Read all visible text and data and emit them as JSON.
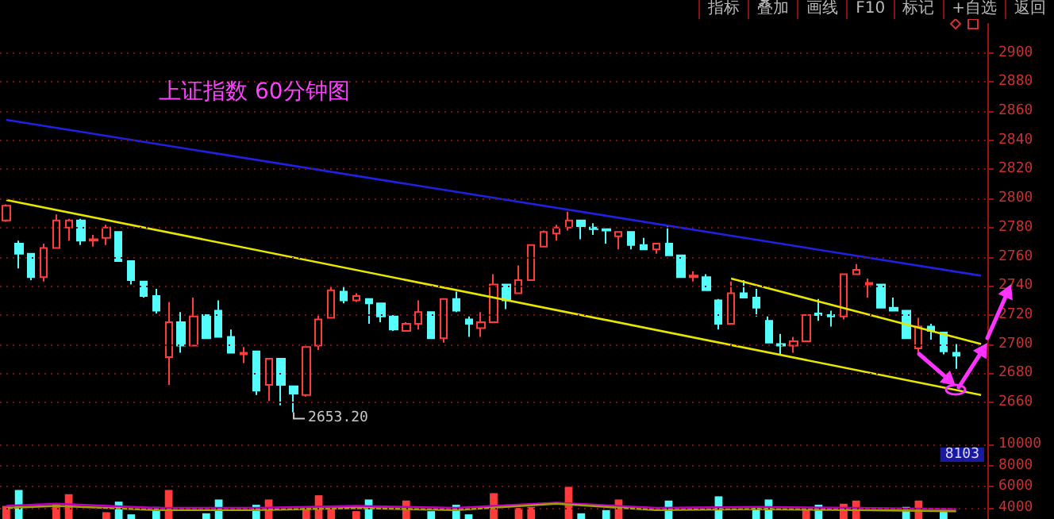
{
  "chart_data": [
    {
      "type": "candlestick",
      "title": "上证指数 60分钟图",
      "categories": [
        null,
        null,
        null,
        null,
        null,
        null,
        null,
        null,
        null,
        null,
        null,
        null,
        null,
        null,
        null,
        null,
        null,
        null,
        null,
        null,
        null,
        null,
        null,
        null,
        null,
        null,
        null,
        null,
        null,
        null,
        null,
        null,
        null,
        null,
        null,
        null,
        null,
        null,
        null,
        null,
        null,
        null,
        null,
        null,
        null,
        null,
        null,
        null,
        null,
        null,
        null,
        null,
        null,
        null,
        null,
        null,
        null,
        null,
        null,
        null,
        null,
        null,
        null,
        null,
        null,
        null,
        null,
        null,
        null,
        null,
        null,
        null,
        null,
        null,
        null,
        null,
        null,
        null,
        null
      ],
      "series": [
        {
          "ohlc": [
            [
              2785,
              2796,
              2784,
              2795
            ],
            [
              2769,
              2771,
              2752,
              2762
            ],
            [
              2762,
              2762,
              2744,
              2746
            ],
            [
              2746,
              2769,
              2743,
              2766
            ],
            [
              2766,
              2789,
              2766,
              2785
            ],
            [
              2780,
              2786,
              2771,
              2785
            ],
            [
              2785,
              2786,
              2768,
              2771
            ],
            [
              2771,
              2775,
              2767,
              2772
            ],
            [
              2773,
              2782,
              2768,
              2780
            ],
            [
              2777,
              2777,
              2757,
              2757
            ],
            [
              2757,
              2757,
              2741,
              2744
            ],
            [
              2743,
              2743,
              2732,
              2733
            ],
            [
              2733,
              2738,
              2721,
              2723
            ],
            [
              2691,
              2729,
              2672,
              2715
            ],
            [
              2715,
              2722,
              2694,
              2699
            ],
            [
              2699,
              2732,
              2699,
              2719
            ],
            [
              2720,
              2720,
              2704,
              2704
            ],
            [
              2723,
              2730,
              2705,
              2705
            ],
            [
              2705,
              2710,
              2694,
              2694
            ],
            [
              2693,
              2698,
              2687,
              2694
            ],
            [
              2695,
              2695,
              2665,
              2668
            ],
            [
              2672,
              2690,
              2661,
              2690
            ],
            [
              2690,
              2690,
              2658,
              2672
            ],
            [
              2671,
              2671,
              2653.2,
              2666
            ],
            [
              2665,
              2698,
              2664,
              2698
            ],
            [
              2699,
              2720,
              2696,
              2717
            ],
            [
              2718,
              2739,
              2718,
              2737
            ],
            [
              2736,
              2739,
              2728,
              2730
            ],
            [
              2730,
              2735,
              2729,
              2733
            ],
            [
              2731,
              2731,
              2714,
              2728
            ],
            [
              2728,
              2728,
              2715,
              2719
            ],
            [
              2719,
              2720,
              2709,
              2710
            ],
            [
              2709,
              2715,
              2709,
              2714
            ],
            [
              2714,
              2730,
              2710,
              2722
            ],
            [
              2722,
              2722,
              2704,
              2704
            ],
            [
              2704,
              2731,
              2701,
              2731
            ],
            [
              2731,
              2736,
              2722,
              2723
            ],
            [
              2717,
              2719,
              2705,
              2714
            ],
            [
              2711,
              2722,
              2705,
              2715
            ],
            [
              2715,
              2748,
              2715,
              2741
            ],
            [
              2741,
              2741,
              2724,
              2730
            ],
            [
              2735,
              2754,
              2735,
              2744
            ],
            [
              2744,
              2768,
              2744,
              2768
            ],
            [
              2767,
              2778,
              2767,
              2777
            ],
            [
              2776,
              2782,
              2771,
              2780
            ],
            [
              2780,
              2791,
              2778,
              2785
            ],
            [
              2785,
              2785,
              2772,
              2781
            ],
            [
              2780,
              2783,
              2775,
              2779
            ],
            [
              2779,
              2779,
              2769,
              2778
            ],
            [
              2774,
              2777,
              2765,
              2777
            ],
            [
              2777,
              2777,
              2765,
              2768
            ],
            [
              2768,
              2773,
              2765,
              2765
            ],
            [
              2765,
              2769,
              2762,
              2769
            ],
            [
              2769,
              2781,
              2761,
              2761
            ],
            [
              2761,
              2761,
              2746,
              2746
            ],
            [
              2746,
              2750,
              2743,
              2747
            ],
            [
              2746,
              2748,
              2737,
              2737
            ],
            [
              2730,
              2731,
              2710,
              2714
            ],
            [
              2714,
              2743,
              2714,
              2735
            ],
            [
              2735,
              2744,
              2732,
              2732
            ],
            [
              2732,
              2738,
              2719,
              2725
            ],
            [
              2716,
              2719,
              2701,
              2701
            ],
            [
              2700,
              2707,
              2693,
              2699
            ],
            [
              2699,
              2705,
              2694,
              2702
            ],
            [
              2702,
              2720,
              2702,
              2720
            ],
            [
              2721,
              2731,
              2716,
              2720
            ],
            [
              2720,
              2723,
              2712,
              2719
            ],
            [
              2719,
              2748,
              2717,
              2748
            ],
            [
              2748,
              2755,
              2748,
              2751
            ],
            [
              2741,
              2745,
              2732,
              2742
            ],
            [
              2741,
              2741,
              2725,
              2725
            ],
            [
              2725,
              2732,
              2723,
              2723
            ],
            [
              2723,
              2723,
              2704,
              2704
            ],
            [
              2697,
              2718,
              2694,
              2712
            ],
            [
              2712,
              2714,
              2703,
              2709
            ],
            [
              2708,
              2708,
              2693,
              2695
            ],
            [
              2694,
              2700,
              2683,
              2692
            ],
            null,
            null
          ],
          "colors": [
            "#ff3c3c",
            "#54fcfc",
            "#54fcfc",
            "#ff3c3c",
            "#ff3c3c",
            "#ff3c3c",
            "#54fcfc",
            "#ff3c3c",
            "#ff3c3c",
            "#54fcfc",
            "#54fcfc",
            "#54fcfc",
            "#54fcfc",
            "#ff3c3c",
            "#54fcfc",
            "#ff3c3c",
            "#54fcfc",
            "#54fcfc",
            "#54fcfc",
            "#ff3c3c",
            "#54fcfc",
            "#ff3c3c",
            "#54fcfc",
            "#54fcfc",
            "#ff3c3c",
            "#ff3c3c",
            "#ff3c3c",
            "#54fcfc",
            "#ff3c3c",
            "#54fcfc",
            "#54fcfc",
            "#54fcfc",
            "#ff3c3c",
            "#ff3c3c",
            "#54fcfc",
            "#ff3c3c",
            "#54fcfc",
            "#54fcfc",
            "#ff3c3c",
            "#ff3c3c",
            "#54fcfc",
            "#ff3c3c",
            "#ff3c3c",
            "#ff3c3c",
            "#ff3c3c",
            "#ff3c3c",
            "#54fcfc",
            "#54fcfc",
            "#54fcfc",
            "#ff3c3c",
            "#54fcfc",
            "#54fcfc",
            "#ff3c3c",
            "#54fcfc",
            "#54fcfc",
            "#ff3c3c",
            "#54fcfc",
            "#54fcfc",
            "#ff3c3c",
            "#54fcfc",
            "#54fcfc",
            "#54fcfc",
            "#54fcfc",
            "#ff3c3c",
            "#ff3c3c",
            "#54fcfc",
            "#54fcfc",
            "#ff3c3c",
            "#ff3c3c",
            "#ff3c3c",
            "#54fcfc",
            "#54fcfc",
            "#54fcfc",
            "#ff3c3c",
            "#54fcfc",
            "#54fcfc",
            "#54fcfc",
            null,
            null
          ],
          "value_labels": [
            null,
            null,
            null,
            null,
            null,
            null,
            null,
            null,
            null,
            null,
            null,
            null,
            null,
            null,
            null,
            null,
            null,
            null,
            null,
            null,
            null,
            null,
            null,
            "2653.20",
            null,
            null,
            null,
            null,
            null,
            null,
            null,
            null,
            null,
            null,
            null,
            null,
            null,
            null,
            null,
            null,
            null,
            null,
            null,
            null,
            null,
            null,
            null,
            null,
            null,
            null,
            null,
            null,
            null,
            null,
            null,
            null,
            null,
            null,
            null,
            null,
            null,
            null,
            null,
            null,
            null,
            null,
            null,
            null,
            null,
            null,
            null,
            null,
            null,
            null,
            null,
            null,
            null,
            null,
            null
          ]
        },
        {
          "type": "line",
          "color": "#2020e0",
          "values": [
            2854,
            null,
            null,
            null,
            null,
            null,
            null,
            null,
            null,
            null,
            null,
            null,
            null,
            null,
            null,
            null,
            null,
            null,
            null,
            null,
            null,
            null,
            null,
            null,
            null,
            null,
            null,
            null,
            null,
            null,
            null,
            null,
            null,
            null,
            null,
            null,
            null,
            null,
            null,
            null,
            null,
            null,
            null,
            null,
            null,
            null,
            null,
            null,
            null,
            null,
            null,
            null,
            null,
            null,
            null,
            null,
            null,
            null,
            null,
            null,
            null,
            null,
            null,
            null,
            null,
            null,
            null,
            null,
            null,
            null,
            null,
            null,
            null,
            null,
            null,
            null,
            null,
            null,
            2747
          ]
        },
        {
          "type": "line",
          "color": "#e6e600",
          "values": [
            2799,
            null,
            null,
            null,
            null,
            null,
            null,
            null,
            null,
            null,
            null,
            null,
            null,
            null,
            null,
            null,
            null,
            null,
            null,
            null,
            null,
            null,
            null,
            null,
            null,
            null,
            null,
            null,
            null,
            null,
            null,
            null,
            null,
            null,
            null,
            null,
            null,
            null,
            null,
            null,
            null,
            null,
            null,
            null,
            null,
            null,
            null,
            null,
            null,
            null,
            null,
            null,
            null,
            null,
            null,
            null,
            null,
            null,
            null,
            null,
            null,
            null,
            null,
            null,
            null,
            null,
            null,
            null,
            null,
            null,
            null,
            null,
            null,
            null,
            null,
            null,
            null,
            null,
            2665
          ]
        },
        {
          "type": "line",
          "color": "#e6e600",
          "values": [
            null,
            null,
            null,
            null,
            null,
            null,
            null,
            null,
            null,
            null,
            null,
            null,
            null,
            null,
            null,
            null,
            null,
            null,
            null,
            null,
            null,
            null,
            null,
            null,
            null,
            null,
            null,
            null,
            null,
            null,
            null,
            null,
            null,
            null,
            null,
            null,
            null,
            null,
            null,
            null,
            null,
            null,
            null,
            null,
            null,
            null,
            null,
            null,
            null,
            null,
            null,
            null,
            null,
            null,
            null,
            null,
            null,
            null,
            2745,
            null,
            null,
            null,
            null,
            null,
            null,
            null,
            null,
            null,
            null,
            null,
            null,
            null,
            null,
            null,
            null,
            null,
            null,
            null,
            2700
          ]
        }
      ],
      "ylim": [
        2642,
        2920
      ],
      "yticks": [
        2660,
        2680,
        2700,
        2720,
        2740,
        2760,
        2780,
        2800,
        2820,
        2840,
        2860,
        2880,
        2900
      ],
      "grid": "y",
      "tick_labels": "y",
      "annotations": [
        "指标",
        "叠加",
        "画线",
        "F10",
        "标记",
        "+自选",
        "返回"
      ]
    },
    {
      "type": "bar",
      "categories": [
        null,
        null,
        null,
        null,
        null,
        null,
        null,
        null,
        null,
        null,
        null,
        null,
        null,
        null,
        null,
        null,
        null,
        null,
        null,
        null,
        null,
        null,
        null,
        null,
        null,
        null,
        null,
        null,
        null,
        null,
        null,
        null,
        null,
        null,
        null,
        null,
        null,
        null,
        null,
        null,
        null,
        null,
        null,
        null,
        null,
        null,
        null,
        null,
        null,
        null,
        null,
        null,
        null,
        null,
        null,
        null,
        null,
        null,
        null,
        null,
        null,
        null,
        null,
        null,
        null,
        null,
        null,
        null,
        null,
        null,
        null,
        null,
        null,
        null,
        null,
        null,
        null,
        null,
        null
      ],
      "series": [
        {
          "values": [
            4200,
            5700,
            null,
            null,
            4400,
            5300,
            null,
            null,
            3600,
            4600,
            3400,
            null,
            4100,
            5700,
            null,
            null,
            3500,
            4800,
            null,
            null,
            4300,
            4800,
            null,
            null,
            4100,
            5200,
            3900,
            null,
            3700,
            4800,
            null,
            null,
            4700,
            null,
            3700,
            null,
            4300,
            3400,
            null,
            5400,
            null,
            4000,
            4100,
            null,
            null,
            6000,
            3500,
            null,
            3800,
            4800,
            null,
            null,
            null,
            4700,
            null,
            null,
            null,
            5100,
            null,
            null,
            4100,
            4800,
            null,
            null,
            3800,
            4300,
            null,
            4400,
            4700,
            null,
            null,
            null,
            4100,
            4700,
            null,
            3800,
            null,
            null,
            null
          ],
          "colors": [
            "#ff3c3c",
            "#54fcfc",
            null,
            null,
            "#ff3c3c",
            "#ff3c3c",
            null,
            null,
            "#ff3c3c",
            "#54fcfc",
            "#54fcfc",
            null,
            "#54fcfc",
            "#ff3c3c",
            null,
            null,
            "#54fcfc",
            "#54fcfc",
            null,
            null,
            "#54fcfc",
            "#ff3c3c",
            null,
            null,
            "#ff3c3c",
            "#ff3c3c",
            "#ff3c3c",
            null,
            "#ff3c3c",
            "#54fcfc",
            null,
            null,
            "#ff3c3c",
            null,
            "#54fcfc",
            null,
            "#54fcfc",
            "#54fcfc",
            null,
            "#ff3c3c",
            null,
            "#ff3c3c",
            "#ff3c3c",
            null,
            null,
            "#ff3c3c",
            "#54fcfc",
            null,
            "#54fcfc",
            "#ff3c3c",
            null,
            null,
            null,
            "#54fcfc",
            null,
            null,
            null,
            "#54fcfc",
            null,
            null,
            "#54fcfc",
            "#54fcfc",
            null,
            null,
            "#ff3c3c",
            "#54fcfc",
            null,
            "#ff3c3c",
            "#ff3c3c",
            null,
            null,
            null,
            "#54fcfc",
            "#ff3c3c",
            null,
            "#54fcfc",
            null,
            null,
            null
          ]
        },
        {
          "type": "line",
          "color": "#c000c0",
          "values": [
            4200,
            null,
            null,
            null,
            4400,
            null,
            null,
            null,
            null,
            null,
            null,
            null,
            4000,
            null,
            null,
            null,
            null,
            null,
            null,
            null,
            4000,
            null,
            null,
            null,
            null,
            null,
            null,
            null,
            4200,
            null,
            null,
            null,
            null,
            null,
            null,
            null,
            4000,
            null,
            null,
            null,
            null,
            null,
            null,
            null,
            4500,
            null,
            null,
            null,
            null,
            null,
            null,
            null,
            4000,
            null,
            null,
            null,
            null,
            null,
            null,
            null,
            4100,
            null,
            null,
            null,
            null,
            null,
            null,
            null,
            4000,
            null,
            null,
            null,
            null,
            null,
            null,
            null,
            3900,
            null,
            null
          ]
        },
        {
          "type": "line",
          "color": "#a0a000",
          "values": [
            4000,
            null,
            null,
            null,
            4200,
            null,
            null,
            null,
            null,
            null,
            null,
            null,
            3800,
            null,
            null,
            null,
            null,
            null,
            null,
            null,
            3800,
            null,
            null,
            null,
            null,
            null,
            null,
            null,
            4000,
            null,
            null,
            null,
            null,
            null,
            null,
            null,
            3800,
            null,
            null,
            null,
            null,
            null,
            null,
            null,
            4400,
            null,
            null,
            null,
            null,
            null,
            null,
            null,
            3800,
            null,
            null,
            null,
            null,
            null,
            null,
            null,
            3900,
            null,
            null,
            null,
            null,
            null,
            null,
            null,
            3800,
            null,
            null,
            null,
            null,
            null,
            null,
            null,
            3700,
            null,
            null
          ]
        }
      ],
      "ylim": [
        2960,
        11500
      ],
      "yticks": [
        4000,
        6000,
        8000,
        10000
      ],
      "grid": "y",
      "tick_labels": "y",
      "annotations": [
        "8103"
      ]
    }
  ]
}
